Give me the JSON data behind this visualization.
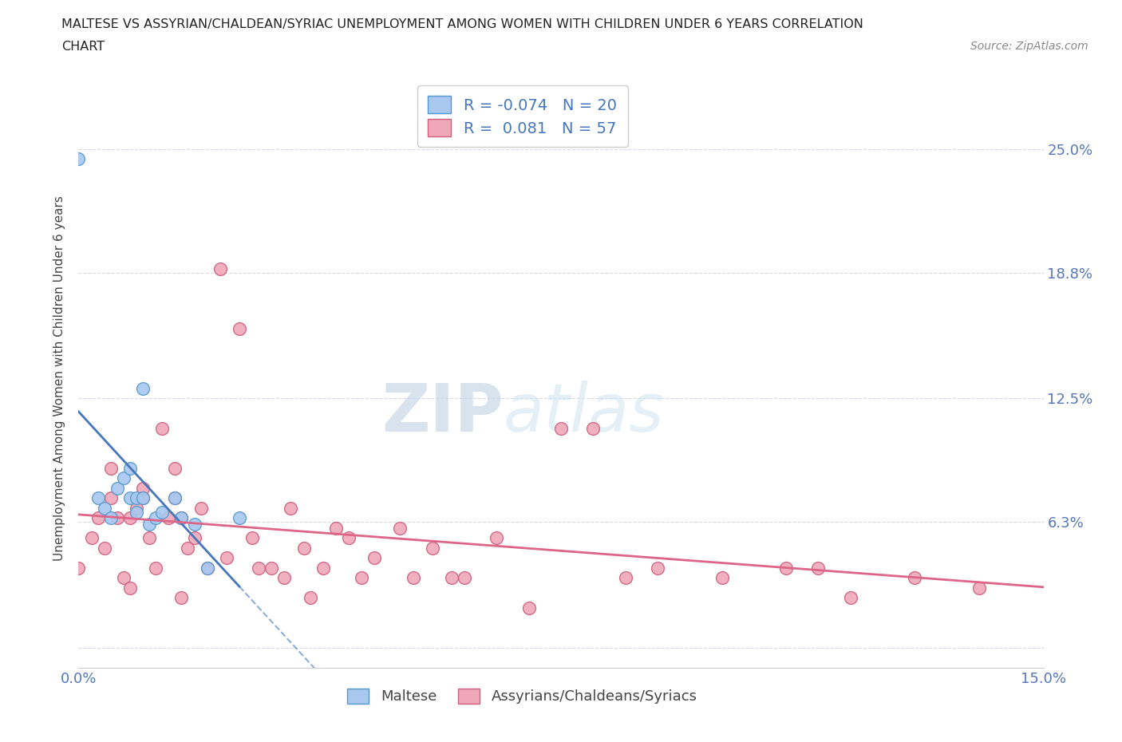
{
  "title_line1": "MALTESE VS ASSYRIAN/CHALDEAN/SYRIAC UNEMPLOYMENT AMONG WOMEN WITH CHILDREN UNDER 6 YEARS CORRELATION",
  "title_line2": "CHART",
  "source_text": "Source: ZipAtlas.com",
  "ylabel": "Unemployment Among Women with Children Under 6 years",
  "xlim": [
    0.0,
    0.15
  ],
  "ylim": [
    -0.01,
    0.28
  ],
  "ytick_positions": [
    0.0,
    0.063,
    0.125,
    0.188,
    0.25
  ],
  "ytick_labels": [
    "",
    "6.3%",
    "12.5%",
    "18.8%",
    "25.0%"
  ],
  "watermark_zip": "ZIP",
  "watermark_atlas": "atlas",
  "legend_entries": [
    {
      "label": "Maltese",
      "color": "#a8c8f0",
      "edge_color": "#5599cc",
      "R": "-0.074",
      "N": "20"
    },
    {
      "label": "Assyrians/Chaldeans/Syriacs",
      "color": "#f0a8b8",
      "edge_color": "#cc6080",
      "R": "0.081",
      "N": "57"
    }
  ],
  "maltese_scatter_x": [
    0.0,
    0.003,
    0.004,
    0.005,
    0.006,
    0.007,
    0.008,
    0.008,
    0.009,
    0.009,
    0.01,
    0.01,
    0.011,
    0.012,
    0.013,
    0.015,
    0.016,
    0.018,
    0.02,
    0.025
  ],
  "maltese_scatter_y": [
    0.245,
    0.075,
    0.07,
    0.065,
    0.08,
    0.085,
    0.075,
    0.09,
    0.068,
    0.075,
    0.075,
    0.13,
    0.062,
    0.065,
    0.068,
    0.075,
    0.065,
    0.062,
    0.04,
    0.065
  ],
  "assyrian_scatter_x": [
    0.0,
    0.002,
    0.003,
    0.004,
    0.005,
    0.005,
    0.006,
    0.007,
    0.008,
    0.008,
    0.009,
    0.01,
    0.01,
    0.011,
    0.012,
    0.013,
    0.014,
    0.015,
    0.015,
    0.016,
    0.016,
    0.017,
    0.018,
    0.019,
    0.02,
    0.022,
    0.023,
    0.025,
    0.027,
    0.028,
    0.03,
    0.032,
    0.033,
    0.035,
    0.036,
    0.038,
    0.04,
    0.042,
    0.044,
    0.046,
    0.05,
    0.052,
    0.055,
    0.058,
    0.06,
    0.065,
    0.07,
    0.075,
    0.08,
    0.085,
    0.09,
    0.1,
    0.11,
    0.115,
    0.12,
    0.13,
    0.14
  ],
  "assyrian_scatter_y": [
    0.04,
    0.055,
    0.065,
    0.05,
    0.075,
    0.09,
    0.065,
    0.035,
    0.03,
    0.065,
    0.07,
    0.075,
    0.08,
    0.055,
    0.04,
    0.11,
    0.065,
    0.075,
    0.09,
    0.065,
    0.025,
    0.05,
    0.055,
    0.07,
    0.04,
    0.19,
    0.045,
    0.16,
    0.055,
    0.04,
    0.04,
    0.035,
    0.07,
    0.05,
    0.025,
    0.04,
    0.06,
    0.055,
    0.035,
    0.045,
    0.06,
    0.035,
    0.05,
    0.035,
    0.035,
    0.055,
    0.02,
    0.11,
    0.11,
    0.035,
    0.04,
    0.035,
    0.04,
    0.04,
    0.025,
    0.035,
    0.03
  ],
  "maltese_line_color": "#4477bb",
  "assyrian_line_color": "#dd6688",
  "background_color": "#ffffff",
  "grid_color": "#d8d8e8",
  "title_color": "#222222",
  "axis_label_color": "#444444",
  "tick_label_color": "#5577bb",
  "legend_r_color": "#4477bb"
}
